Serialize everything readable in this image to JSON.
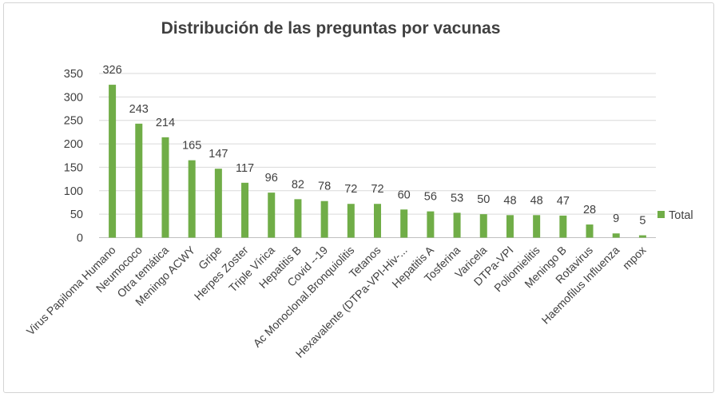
{
  "chart_data": {
    "type": "bar",
    "title": "Distribución de las preguntas por vacunas",
    "xlabel": "",
    "ylabel": "",
    "ylim": [
      0,
      350
    ],
    "yticks": [
      0,
      50,
      100,
      150,
      200,
      250,
      300,
      350
    ],
    "grid": true,
    "legend_position": "right",
    "bar_color": "#70ad47",
    "categories": [
      "Virus Papiloma Humano",
      "Neumococo",
      "Otra temática",
      "Meningo ACWY",
      "Gripe",
      "Herpes Zoster",
      "Triple Vírica",
      "Hepatitis B",
      "Covid --19",
      "Ac Monoclonal.Bronquiolitis",
      "Tetanos",
      "Hexavalente (DTPa-VPI-Hiv-...",
      "Hepatitis A",
      "Tosferina",
      "Varicela",
      "DTPa-VPI",
      "Poliomielitis",
      "Meningo B",
      "Rotavirus",
      "Haemofilus Influenza",
      "mpox"
    ],
    "series": [
      {
        "name": "Total",
        "values": [
          326,
          243,
          214,
          165,
          147,
          117,
          96,
          82,
          78,
          72,
          72,
          60,
          56,
          53,
          50,
          48,
          48,
          47,
          28,
          9,
          5
        ]
      }
    ]
  }
}
